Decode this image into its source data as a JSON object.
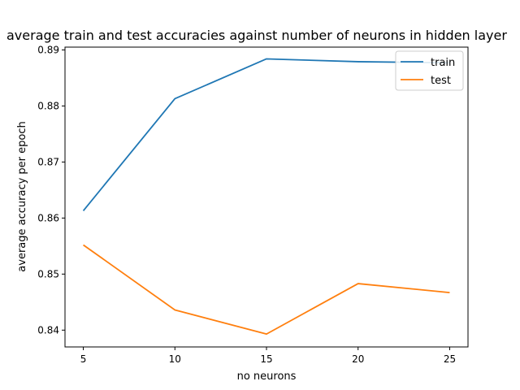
{
  "chart_data": {
    "type": "line",
    "title": "average train and test accuracies against number of neurons in hidden layer",
    "xlabel": "no neurons",
    "ylabel": "average accuracy per epoch",
    "x": [
      5,
      10,
      15,
      20,
      25
    ],
    "xlim": [
      4,
      26
    ],
    "ylim": [
      0.837,
      0.8905
    ],
    "xticks": [
      "5",
      "10",
      "15",
      "20",
      "25"
    ],
    "yticks": [
      "0.84",
      "0.85",
      "0.86",
      "0.87",
      "0.88",
      "0.89"
    ],
    "grid": false,
    "legend_position": "top-right",
    "series": [
      {
        "name": "train",
        "color": "#1f77b4",
        "values": [
          0.8613,
          0.8813,
          0.8884,
          0.8879,
          0.8877
        ]
      },
      {
        "name": "test",
        "color": "#ff7f0e",
        "values": [
          0.8552,
          0.8436,
          0.8393,
          0.8483,
          0.8467
        ]
      }
    ]
  }
}
